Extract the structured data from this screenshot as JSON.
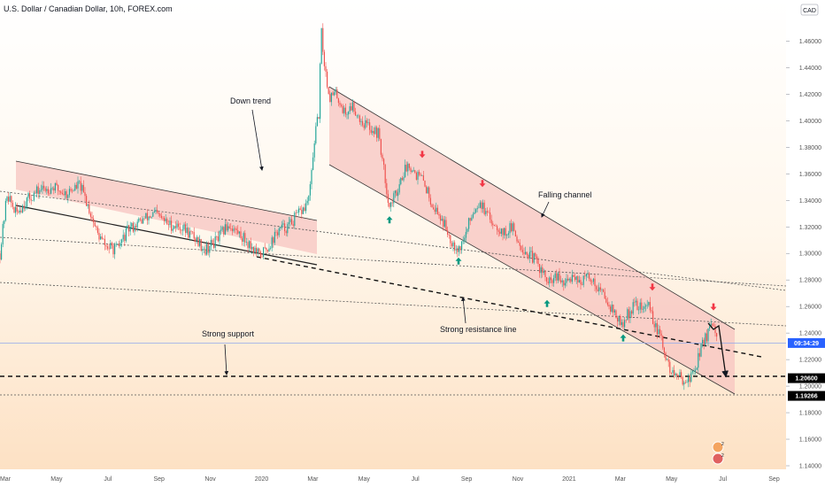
{
  "header": {
    "title": "U.S. Dollar / Canadian Dollar, 10h, FOREX.com"
  },
  "currency_badge": "CAD",
  "chart_data": {
    "type": "candlestick",
    "symbol": "USDCAD",
    "timeframe": "10h",
    "x_tick_labels": [
      "Mar",
      "May",
      "Jul",
      "Sep",
      "Nov",
      "2020",
      "Mar",
      "May",
      "Jul",
      "Sep",
      "Nov",
      "2021",
      "Mar",
      "May",
      "Jul",
      "Sep"
    ],
    "y_tick_labels": [
      "1.46000",
      "1.44000",
      "1.42000",
      "1.40000",
      "1.38000",
      "1.36000",
      "1.34000",
      "1.32000",
      "1.30000",
      "1.28000",
      "1.26000",
      "1.24000",
      "1.22000",
      "1.20000",
      "1.18000",
      "1.16000",
      "1.14000"
    ],
    "y_ticks": [
      1.46,
      1.44,
      1.42,
      1.4,
      1.38,
      1.36,
      1.34,
      1.32,
      1.3,
      1.28,
      1.26,
      1.24,
      1.22,
      1.2,
      1.18,
      1.16,
      1.14
    ],
    "ylim": [
      1.134,
      1.483
    ],
    "grid": false,
    "price_tags": [
      {
        "label": "09:34:29",
        "value": 1.2325,
        "bg": "#2962ff",
        "fg": "#ffffff"
      },
      {
        "label": "1.20600",
        "value": 1.206,
        "bg": "#000000",
        "fg": "#ffffff"
      },
      {
        "label": "1.19266",
        "value": 1.19266,
        "bg": "#000000",
        "fg": "#ffffff"
      }
    ],
    "price_path": [
      [
        0,
        1.3
      ],
      [
        8,
        1.345
      ],
      [
        18,
        1.33
      ],
      [
        30,
        1.34
      ],
      [
        45,
        1.348
      ],
      [
        60,
        1.35
      ],
      [
        75,
        1.345
      ],
      [
        90,
        1.352
      ],
      [
        100,
        1.335
      ],
      [
        110,
        1.315
      ],
      [
        120,
        1.305
      ],
      [
        132,
        1.303
      ],
      [
        145,
        1.318
      ],
      [
        160,
        1.325
      ],
      [
        175,
        1.33
      ],
      [
        190,
        1.322
      ],
      [
        205,
        1.32
      ],
      [
        220,
        1.312
      ],
      [
        232,
        1.303
      ],
      [
        245,
        1.31
      ],
      [
        258,
        1.322
      ],
      [
        270,
        1.315
      ],
      [
        282,
        1.307
      ],
      [
        293,
        1.298
      ],
      [
        303,
        1.305
      ],
      [
        315,
        1.318
      ],
      [
        325,
        1.32
      ],
      [
        335,
        1.328
      ],
      [
        345,
        1.335
      ],
      [
        350,
        1.345
      ],
      [
        355,
        1.385
      ],
      [
        360,
        1.405
      ],
      [
        363,
        1.468
      ],
      [
        366,
        1.445
      ],
      [
        372,
        1.418
      ],
      [
        380,
        1.42
      ],
      [
        390,
        1.405
      ],
      [
        398,
        1.412
      ],
      [
        408,
        1.4
      ],
      [
        418,
        1.395
      ],
      [
        428,
        1.39
      ],
      [
        433,
        1.365
      ],
      [
        440,
        1.335
      ],
      [
        447,
        1.345
      ],
      [
        455,
        1.36
      ],
      [
        462,
        1.368
      ],
      [
        470,
        1.36
      ],
      [
        478,
        1.355
      ],
      [
        490,
        1.335
      ],
      [
        500,
        1.325
      ],
      [
        510,
        1.31
      ],
      [
        518,
        1.303
      ],
      [
        525,
        1.312
      ],
      [
        533,
        1.33
      ],
      [
        542,
        1.34
      ],
      [
        550,
        1.328
      ],
      [
        560,
        1.322
      ],
      [
        570,
        1.315
      ],
      [
        578,
        1.32
      ],
      [
        585,
        1.31
      ],
      [
        595,
        1.3
      ],
      [
        605,
        1.295
      ],
      [
        613,
        1.285
      ],
      [
        620,
        1.277
      ],
      [
        628,
        1.282
      ],
      [
        638,
        1.276
      ],
      [
        648,
        1.285
      ],
      [
        656,
        1.278
      ],
      [
        665,
        1.283
      ],
      [
        675,
        1.275
      ],
      [
        685,
        1.266
      ],
      [
        695,
        1.254
      ],
      [
        702,
        1.245
      ],
      [
        710,
        1.255
      ],
      [
        718,
        1.262
      ],
      [
        727,
        1.258
      ],
      [
        733,
        1.262
      ],
      [
        740,
        1.245
      ],
      [
        747,
        1.235
      ],
      [
        755,
        1.215
      ],
      [
        762,
        1.208
      ],
      [
        770,
        1.206
      ],
      [
        778,
        1.204
      ],
      [
        786,
        1.215
      ],
      [
        793,
        1.232
      ],
      [
        800,
        1.24
      ],
      [
        805,
        1.245
      ],
      [
        810,
        1.235
      ]
    ],
    "annotations": [
      {
        "text": "Down trend"
      },
      {
        "text": "Falling channel"
      },
      {
        "text": "Strong resistance line"
      },
      {
        "text": "Strong support"
      }
    ],
    "markers": {
      "up_arrows": [
        {
          "x": 440,
          "value": 1.328
        },
        {
          "x": 518,
          "value": 1.297
        },
        {
          "x": 618,
          "value": 1.265
        },
        {
          "x": 704,
          "value": 1.239
        }
      ],
      "down_arrows": [
        {
          "x": 477,
          "value": 1.372
        },
        {
          "x": 545,
          "value": 1.35
        },
        {
          "x": 737,
          "value": 1.272
        },
        {
          "x": 806,
          "value": 1.257
        }
      ]
    },
    "colors": {
      "up_candle": "#26a69a",
      "down_candle": "#ef5350",
      "channel_fill": "#f7c4c0",
      "up_arrow": "#089981",
      "down_arrow": "#f23645",
      "current_price_line": "#8fa9ec"
    }
  }
}
